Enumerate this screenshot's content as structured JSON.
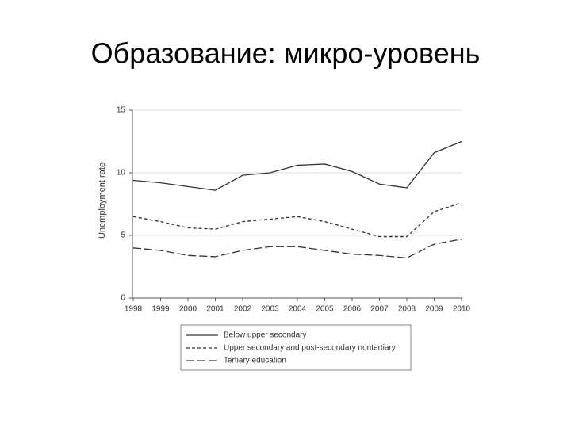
{
  "title": "Образование: микро-уровень",
  "chart_data": {
    "type": "line",
    "y_label": "Unemployment rate",
    "categories": [
      "1998",
      "1999",
      "2000",
      "2001",
      "2002",
      "2003",
      "2004",
      "2005",
      "2006",
      "2007",
      "2008",
      "2009",
      "2010"
    ],
    "series": [
      {
        "name": "Below upper secondary",
        "color": "#333333",
        "dash": "none",
        "values": [
          9.4,
          9.2,
          8.9,
          8.6,
          9.8,
          10.0,
          10.6,
          10.7,
          10.1,
          9.1,
          8.8,
          11.6,
          12.5
        ]
      },
      {
        "name": "Upper secondary and post-secondary nontertiary",
        "color": "#333333",
        "dash": "4,3",
        "values": [
          6.5,
          6.1,
          5.6,
          5.5,
          6.1,
          6.3,
          6.5,
          6.1,
          5.5,
          4.9,
          4.9,
          6.9,
          7.6
        ]
      },
      {
        "name": "Tertiary education",
        "color": "#333333",
        "dash": "10,4",
        "values": [
          4.0,
          3.8,
          3.4,
          3.3,
          3.8,
          4.1,
          4.1,
          3.8,
          3.5,
          3.4,
          3.2,
          4.3,
          4.7
        ]
      }
    ],
    "ylim": [
      0,
      15
    ],
    "yticks": [
      0,
      5,
      10,
      15
    ],
    "grid": true
  }
}
